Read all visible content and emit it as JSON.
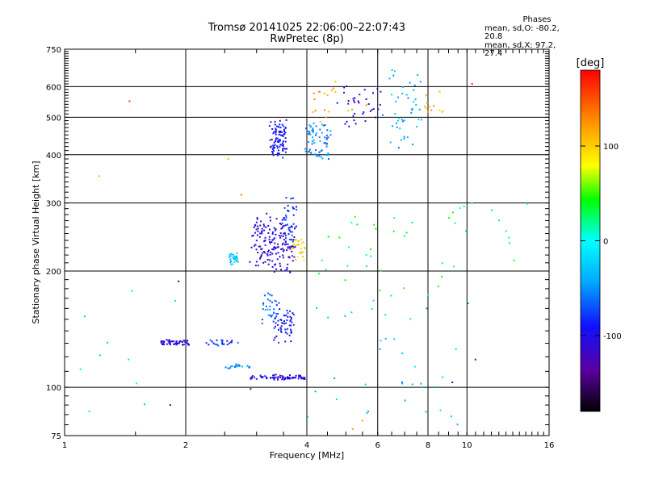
{
  "header": {
    "title": "Tromsø 20141025 22:06:00–22:07:43",
    "subtitle": "RwPretec (8p)"
  },
  "phase_stats": {
    "heading": "Phases",
    "line_o": "mean, sd,O: -80.2, 20.8",
    "line_x": "mean, sd,X:  97.2, 27.4"
  },
  "chart_data": {
    "type": "scatter",
    "title": "Tromsø 20141025 22:06:00–22:07:43",
    "subtitle": "RwPretec (8p)",
    "xlabel": "Frequency [MHz]",
    "ylabel": "Stationary phase Virtual Height [km]",
    "x_scale": "log",
    "y_scale": "log",
    "xlim": [
      1,
      16
    ],
    "ylim": [
      75,
      750
    ],
    "x_ticks": [
      1,
      2,
      4,
      6,
      8,
      10,
      16
    ],
    "y_ticks": [
      75,
      100,
      200,
      300,
      400,
      500,
      600,
      750
    ],
    "grid": true,
    "colorbar": {
      "label": "[deg]",
      "range": [
        -180,
        180
      ],
      "ticks": [
        100,
        0,
        -100
      ]
    },
    "clusters": [
      {
        "x": [
          1.74,
          2.05
        ],
        "y": [
          130,
          131
        ],
        "phase": -110,
        "n": 55,
        "jx": 0.004,
        "jy": 0.012
      },
      {
        "x": [
          2.25,
          2.75
        ],
        "y": [
          130,
          131
        ],
        "phase": -80,
        "n": 22,
        "jx": 0.004,
        "jy": 0.015
      },
      {
        "x": [
          2.5,
          2.9
        ],
        "y": [
          113,
          114
        ],
        "phase": -50,
        "n": 18,
        "jx": 0.004,
        "jy": 0.012
      },
      {
        "x": [
          2.9,
          3.95
        ],
        "y": [
          105,
          107
        ],
        "phase": -105,
        "n": 70,
        "jx": 0.003,
        "jy": 0.008
      },
      {
        "x": [
          3.3,
          3.7
        ],
        "y": [
          135,
          160
        ],
        "phase": -90,
        "n": 60,
        "jx": 0.006,
        "jy": 0.035
      },
      {
        "x": [
          3.1,
          3.4
        ],
        "y": [
          150,
          170
        ],
        "phase": -60,
        "n": 30,
        "jx": 0.006,
        "jy": 0.04
      },
      {
        "x": [
          2.95,
          3.7
        ],
        "y": [
          205,
          270
        ],
        "phase": -110,
        "n": 170,
        "jx": 0.02,
        "jy": 0.04
      },
      {
        "x": [
          3.5,
          3.75
        ],
        "y": [
          230,
          300
        ],
        "phase": -80,
        "n": 40,
        "jx": 0.01,
        "jy": 0.05
      },
      {
        "x": [
          3.7,
          3.95
        ],
        "y": [
          215,
          240
        ],
        "phase": 100,
        "n": 25,
        "jx": 0.01,
        "jy": 0.02
      },
      {
        "x": [
          2.55,
          2.7
        ],
        "y": [
          210,
          220
        ],
        "phase": -30,
        "n": 30,
        "jx": 0.006,
        "jy": 0.015
      },
      {
        "x": [
          3.25,
          3.55
        ],
        "y": [
          400,
          480
        ],
        "phase": -95,
        "n": 90,
        "jx": 0.008,
        "jy": 0.04
      },
      {
        "x": [
          3.95,
          4.55
        ],
        "y": [
          400,
          480
        ],
        "phase": -55,
        "n": 70,
        "jx": 0.02,
        "jy": 0.04
      },
      {
        "x": [
          4.8,
          6.1
        ],
        "y": [
          480,
          580
        ],
        "phase": -110,
        "n": 35,
        "jx": 0.02,
        "jy": 0.04
      },
      {
        "x": [
          6.3,
          7.6
        ],
        "y": [
          430,
          640
        ],
        "phase": -40,
        "n": 45,
        "jx": 0.03,
        "jy": 0.05
      },
      {
        "x": [
          4.0,
          5.5
        ],
        "y": [
          500,
          600
        ],
        "phase": 120,
        "n": 20,
        "jx": 0.03,
        "jy": 0.04
      },
      {
        "x": [
          7.8,
          9.1
        ],
        "y": [
          520,
          580
        ],
        "phase": 110,
        "n": 12,
        "jx": 0.02,
        "jy": 0.03
      },
      {
        "x": [
          4.3,
          13
        ],
        "y": [
          190,
          290
        ],
        "phase": 30,
        "n": 45,
        "jx": 0.1,
        "jy": 0.1
      },
      {
        "x": [
          4.0,
          10
        ],
        "y": [
          85,
          160
        ],
        "phase": -30,
        "n": 35,
        "jx": 0.1,
        "jy": 0.1
      },
      {
        "x": [
          1.2,
          1.9
        ],
        "y": [
          80,
          200
        ],
        "phase": -10,
        "n": 10,
        "jx": 0.1,
        "jy": 0.2
      }
    ],
    "points": [
      {
        "x": 1.22,
        "y": 352,
        "phase": 110
      },
      {
        "x": 1.45,
        "y": 550,
        "phase": 160
      },
      {
        "x": 1.83,
        "y": 90,
        "phase": -110
      },
      {
        "x": 1.92,
        "y": 188,
        "phase": -150
      },
      {
        "x": 2.55,
        "y": 390,
        "phase": 110
      },
      {
        "x": 2.75,
        "y": 315,
        "phase": 140
      },
      {
        "x": 2.9,
        "y": 99,
        "phase": -110
      },
      {
        "x": 5.5,
        "y": 82,
        "phase": 120
      },
      {
        "x": 5.2,
        "y": 78,
        "phase": 120
      },
      {
        "x": 10.3,
        "y": 610,
        "phase": 160
      },
      {
        "x": 10.5,
        "y": 118,
        "phase": -130
      },
      {
        "x": 9.2,
        "y": 103,
        "phase": -110
      },
      {
        "x": 6.9,
        "y": 103,
        "phase": -60
      }
    ]
  }
}
